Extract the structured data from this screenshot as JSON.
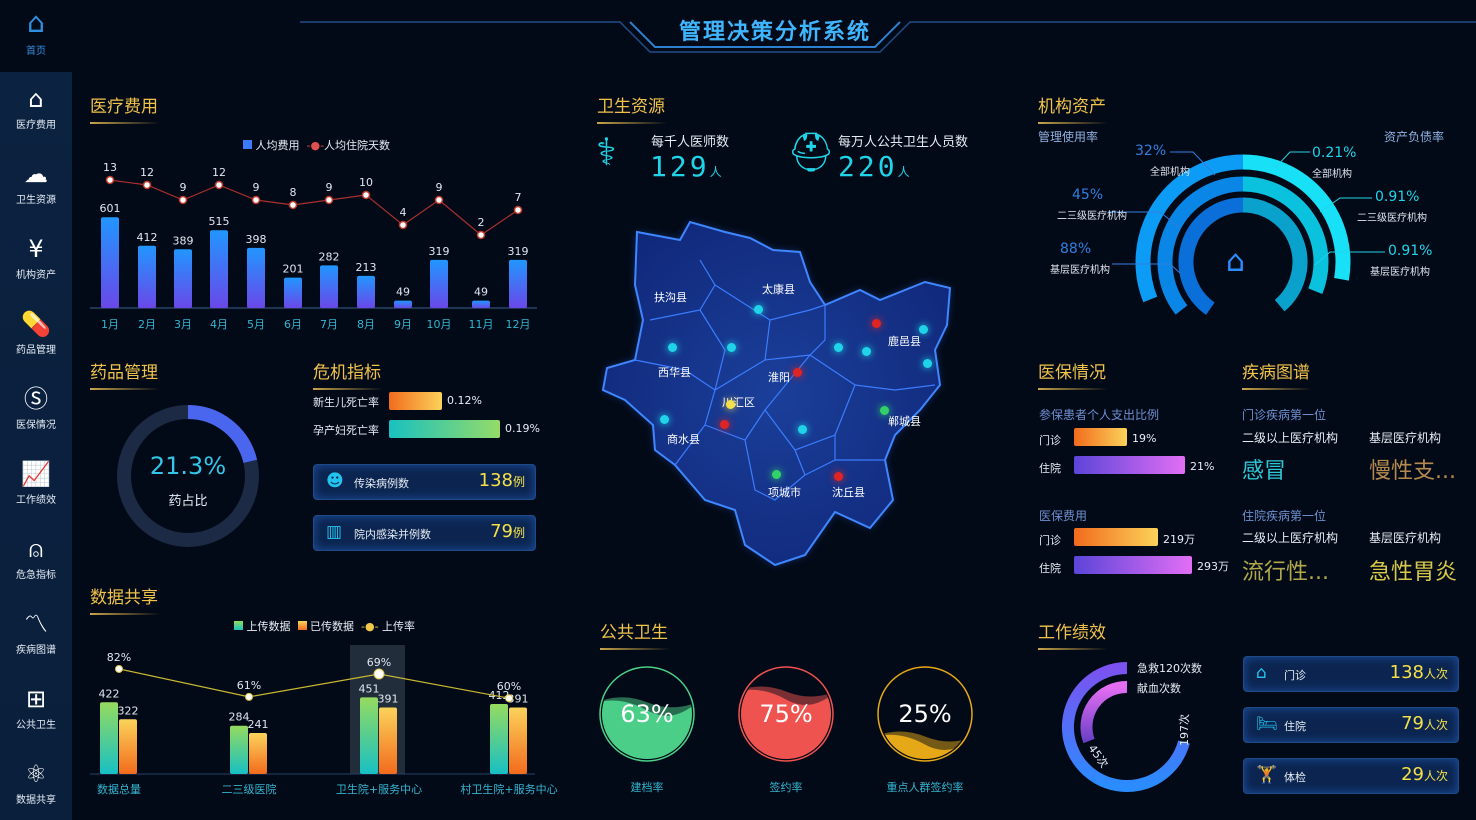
{
  "header": {
    "title": "管理决策分析系统"
  },
  "sidebar": {
    "home": "首页",
    "items": [
      {
        "label": "医疗费用",
        "icon": "house-yen-icon",
        "glyph": "⌂"
      },
      {
        "label": "卫生资源",
        "icon": "cloud-icon",
        "glyph": "☁"
      },
      {
        "label": "机构资产",
        "icon": "coin-stack-icon",
        "glyph": "¥"
      },
      {
        "label": "药品管理",
        "icon": "pill-icon",
        "glyph": "💊"
      },
      {
        "label": "医保情况",
        "icon": "si-logo-icon",
        "glyph": "Ⓢ"
      },
      {
        "label": "工作绩效",
        "icon": "line-chart-icon",
        "glyph": "📈"
      },
      {
        "label": "危急指标",
        "icon": "bell-icon",
        "glyph": "⍝"
      },
      {
        "label": "疾病图谱",
        "icon": "pulse-chart-icon",
        "glyph": "〽"
      },
      {
        "label": "公共卫生",
        "icon": "medical-kit-icon",
        "glyph": "⊞"
      },
      {
        "label": "数据共享",
        "icon": "share-icon",
        "glyph": "⚛"
      }
    ]
  },
  "medical_cost": {
    "title": "医疗费用"
  },
  "drug": {
    "title": "药品管理",
    "value": "21.3%",
    "label": "药占比",
    "fraction": 0.213
  },
  "crisis": {
    "title": "危机指标",
    "bars": [
      {
        "label": "新生儿死亡率",
        "value": "0.12%",
        "fraction": 0.12
      },
      {
        "label": "孕产妇死亡率",
        "value": "0.19%",
        "fraction": 0.19
      }
    ],
    "cards": [
      {
        "label": "传染病例数",
        "value": "138",
        "unit": "例"
      },
      {
        "label": "院内感染并例数",
        "value": "79",
        "unit": "例"
      }
    ]
  },
  "data_share": {
    "title": "数据共享"
  },
  "health": {
    "title": "卫生资源",
    "stats": [
      {
        "label": "每千人医师数",
        "value": "129",
        "unit": "人"
      },
      {
        "label": "每万人公共卫生人员数",
        "value": "220",
        "unit": "人"
      }
    ],
    "districts": [
      "扶沟县",
      "太康县",
      "西华县",
      "淮阳",
      "川汇区",
      "鹿邑县",
      "商水县",
      "郸城县",
      "项城市",
      "沈丘县"
    ]
  },
  "public_health": {
    "title": "公共卫生",
    "gauges": [
      {
        "label": "建档率",
        "value": "63%",
        "fraction": 0.63,
        "color": "#4bcf88"
      },
      {
        "label": "签约率",
        "value": "75%",
        "fraction": 0.75,
        "color": "#ef5350"
      },
      {
        "label": "重点人群签约率",
        "value": "25%",
        "fraction": 0.25,
        "color": "#e6a817"
      }
    ]
  },
  "assets": {
    "title": "机构资产",
    "left_title": "管理使用率",
    "right_title": "资产负债率",
    "left": [
      {
        "value": "32%",
        "label": "全部机构"
      },
      {
        "value": "45%",
        "label": "二三级医疗机构"
      },
      {
        "value": "88%",
        "label": "基层医疗机构"
      }
    ],
    "right": [
      {
        "value": "0.21%",
        "label": "全部机构"
      },
      {
        "value": "0.91%",
        "label": "二三级医疗机构"
      },
      {
        "value": "0.91%",
        "label": "基层医疗机构"
      }
    ]
  },
  "insurance": {
    "title": "医保情况",
    "ratio_title": "参保患者个人支出比例",
    "ratio": [
      {
        "label": "门诊",
        "value": "19%"
      },
      {
        "label": "住院",
        "value": "21%"
      }
    ],
    "cost_title": "医保费用",
    "cost": [
      {
        "label": "门诊",
        "value": "219万"
      },
      {
        "label": "住院",
        "value": "293万"
      }
    ]
  },
  "disease": {
    "title": "疾病图谱",
    "outpatient_title": "门诊疾病第一位",
    "inpatient_title": "住院疾病第一位",
    "col1": "二级以上医疗机构",
    "col2": "基层医疗机构",
    "outpatient": [
      "感冒",
      "慢性支..."
    ],
    "inpatient": [
      "流行性...",
      "急性胃炎"
    ]
  },
  "performance": {
    "title": "工作绩效",
    "legend": [
      "急救120次数",
      "献血次数"
    ],
    "ring_labels": [
      "197次",
      "45次"
    ],
    "cards": [
      {
        "label": "门诊",
        "value": "138",
        "unit": "人次"
      },
      {
        "label": "住院",
        "value": "79",
        "unit": "人次"
      },
      {
        "label": "体检",
        "value": "29",
        "unit": "人次"
      }
    ]
  },
  "chart_data": [
    {
      "type": "bar",
      "legend": [
        "人均费用",
        "人均住院天数"
      ],
      "categories": [
        "1月",
        "2月",
        "3月",
        "4月",
        "5月",
        "6月",
        "7月",
        "8月",
        "9月",
        "10月",
        "11月",
        "12月"
      ],
      "series": [
        {
          "name": "人均费用",
          "type": "bar",
          "values": [
            601,
            412,
            389,
            515,
            398,
            201,
            282,
            213,
            49,
            319,
            49,
            319
          ]
        },
        {
          "name": "人均住院天数",
          "type": "line",
          "values": [
            13,
            12,
            9,
            12,
            9,
            8,
            9,
            10,
            4,
            9,
            2,
            7
          ]
        }
      ]
    },
    {
      "type": "bar",
      "legend": [
        "上传数据",
        "已传数据",
        "上传率"
      ],
      "categories": [
        "数据总量",
        "二三级医院",
        "卫生院+服务中心",
        "村卫生院+服务中心"
      ],
      "series": [
        {
          "name": "上传数据",
          "values": [
            422,
            284,
            451,
            412
          ]
        },
        {
          "name": "已传数据",
          "values": [
            322,
            241,
            391,
            391
          ]
        },
        {
          "name": "上传率",
          "type": "line",
          "values": [
            "82%",
            "61%",
            "69%",
            "60%"
          ]
        }
      ],
      "highlighted": "卫生院+服务中心"
    }
  ]
}
